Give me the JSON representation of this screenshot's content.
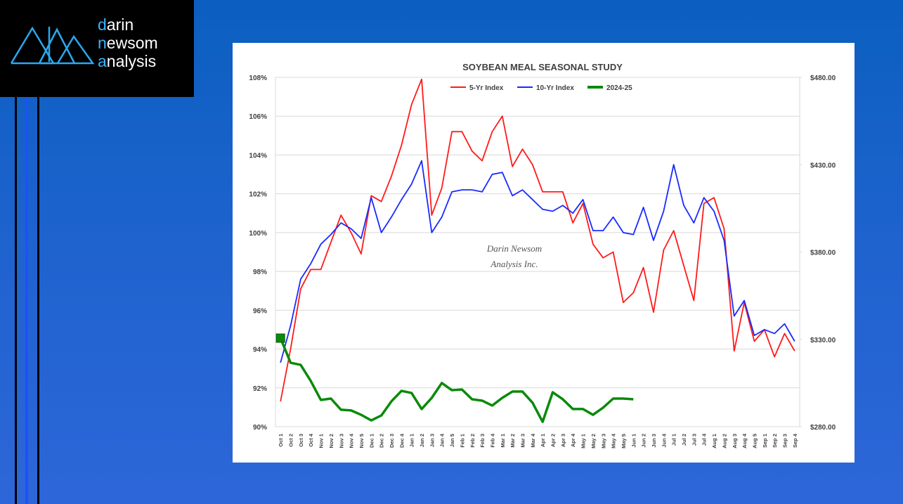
{
  "logo": [
    "darin",
    "newsom",
    "analysis"
  ],
  "chart_data": {
    "type": "line",
    "title": "SOYBEAN MEAL SEASONAL STUDY",
    "watermark": [
      "Darin Newsom",
      "Analysis Inc."
    ],
    "categories": [
      "Oct 1",
      "Oct 2",
      "Oct 3",
      "Oct 4",
      "Nov 1",
      "Nov 2",
      "Nov 3",
      "Nov 4",
      "Nov 5",
      "Dec 1",
      "Dec 2",
      "Dec 3",
      "Dec 4",
      "Jan 1",
      "Jan 2",
      "Jan 3",
      "Jan 4",
      "Jan 5",
      "Feb 1",
      "Feb 2",
      "Feb 3",
      "Feb 4",
      "Mar 1",
      "Mar 2",
      "Mar 3",
      "Mar 4",
      "Apr 1",
      "Apr 2",
      "Apr 3",
      "Apr 4",
      "May 1",
      "May 2",
      "May 3",
      "May 4",
      "May 5",
      "Jun 1",
      "Jun 2",
      "Jun 3",
      "Jun 4",
      "Jul 1",
      "Jul 2",
      "Jul 3",
      "Jul 4",
      "Aug 1",
      "Aug 2",
      "Aug 3",
      "Aug 4",
      "Aug 5",
      "Sep 1",
      "Sep 2",
      "Sep 3",
      "Sep 4"
    ],
    "series": [
      {
        "name": "5-Yr Index",
        "color": "#ff1a1a",
        "values": [
          91.3,
          94.0,
          97.1,
          98.1,
          98.1,
          99.5,
          100.9,
          100.0,
          98.9,
          101.9,
          101.6,
          102.9,
          104.5,
          106.6,
          107.9,
          100.9,
          102.3,
          105.2,
          105.2,
          104.2,
          103.7,
          105.2,
          106.0,
          103.4,
          104.3,
          103.5,
          102.1,
          102.1,
          102.1,
          100.5,
          101.5,
          99.4,
          98.7,
          99.0,
          96.4,
          96.9,
          98.2,
          95.9,
          99.1,
          100.1,
          98.3,
          96.5,
          101.5,
          101.8,
          100.2,
          93.9,
          96.4,
          94.4,
          95.0,
          93.6,
          94.8,
          93.9
        ]
      },
      {
        "name": "10-Yr Index",
        "color": "#1a2aff",
        "values": [
          93.3,
          95.2,
          97.6,
          98.4,
          99.4,
          99.9,
          100.5,
          100.2,
          99.7,
          101.8,
          100.0,
          100.8,
          101.7,
          102.5,
          103.7,
          100.0,
          100.8,
          102.1,
          102.2,
          102.2,
          102.1,
          103.0,
          103.1,
          101.9,
          102.2,
          101.7,
          101.2,
          101.1,
          101.4,
          101.0,
          101.7,
          100.1,
          100.1,
          100.8,
          100.0,
          99.9,
          101.3,
          99.6,
          101.1,
          103.5,
          101.4,
          100.5,
          101.8,
          101.1,
          99.6,
          95.7,
          96.5,
          94.7,
          95.0,
          94.8,
          95.3,
          94.4
        ]
      },
      {
        "name": "2024-25",
        "color": "#0a8a0a",
        "axis": "y2",
        "values": [
          330.7,
          316.6,
          315.4,
          306.2,
          295.3,
          296.1,
          289.7,
          289.3,
          286.8,
          283.6,
          286.4,
          294.5,
          300.5,
          299.3,
          290.1,
          296.5,
          305.0,
          300.9,
          301.3,
          295.7,
          294.9,
          292.1,
          296.5,
          300.1,
          300.1,
          293.7,
          282.8,
          299.7,
          295.7,
          290.1,
          290.1,
          286.8,
          290.9,
          296.1,
          296.1,
          295.7,
          null,
          null,
          null,
          null,
          null,
          null,
          null,
          null,
          null,
          null,
          null,
          null,
          null,
          null,
          null,
          null
        ]
      }
    ],
    "ylim": [
      90,
      108
    ],
    "yticks": [
      {
        "value": 90,
        "label": "90%"
      },
      {
        "value": 92,
        "label": "92%"
      },
      {
        "value": 94,
        "label": "94%"
      },
      {
        "value": 96,
        "label": "96%"
      },
      {
        "value": 98,
        "label": "98%"
      },
      {
        "value": 100,
        "label": "100%"
      },
      {
        "value": 102,
        "label": "102%"
      },
      {
        "value": 104,
        "label": "104%"
      },
      {
        "value": 106,
        "label": "106%"
      },
      {
        "value": 108,
        "label": "108%"
      }
    ],
    "y2lim": [
      280,
      480
    ],
    "y2ticks": [
      {
        "value": 280,
        "label": "$280.00"
      },
      {
        "value": 330,
        "label": "$330.00"
      },
      {
        "value": 380,
        "label": "$380.00"
      },
      {
        "value": 430,
        "label": "$430.00"
      },
      {
        "value": 480,
        "label": "$480.00"
      }
    ],
    "grid": true,
    "legend": "top"
  }
}
